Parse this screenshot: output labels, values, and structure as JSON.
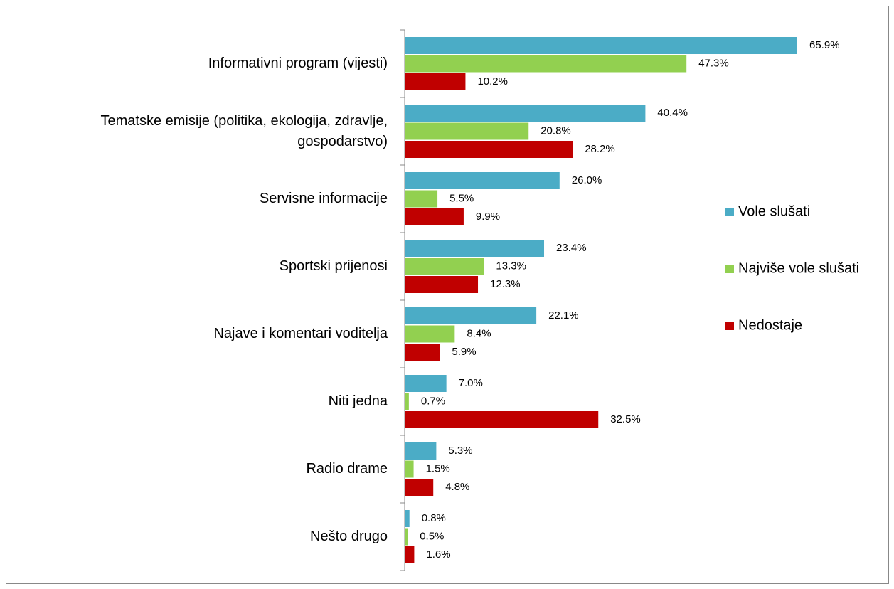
{
  "chart_data": {
    "type": "bar",
    "orientation": "horizontal",
    "categories": [
      "Informativni program (vijesti)",
      "Tematske emisije (politika, ekologija, zdravlje, gospodarstvo)",
      "Servisne informacije",
      "Sportski prijenosi",
      "Najave i komentari voditelja",
      "Niti jedna",
      "Radio drame",
      "Nešto drugo"
    ],
    "series": [
      {
        "name": "Vole slušati",
        "color": "#4bacc6",
        "values": [
          65.9,
          40.4,
          26.0,
          23.4,
          22.1,
          7.0,
          5.3,
          0.8
        ],
        "value_labels": [
          "65.9%",
          "40.4%",
          "26.0%",
          "23.4%",
          "22.1%",
          "7.0%",
          "5.3%",
          "0.8%"
        ]
      },
      {
        "name": "Najviše vole slušati",
        "color": "#92d050",
        "values": [
          47.3,
          20.8,
          5.5,
          13.3,
          8.4,
          0.7,
          1.5,
          0.5
        ],
        "value_labels": [
          "47.3%",
          "20.8%",
          "5.5%",
          "13.3%",
          "8.4%",
          "0.7%",
          "1.5%",
          "0.5%"
        ]
      },
      {
        "name": "Nedostaje",
        "color": "#c00000",
        "values": [
          10.2,
          28.2,
          9.9,
          12.3,
          5.9,
          32.5,
          4.8,
          1.6
        ],
        "value_labels": [
          "10.2%",
          "28.2%",
          "9.9%",
          "12.3%",
          "5.9%",
          "32.5%",
          "4.8%",
          "1.6%"
        ]
      }
    ],
    "legend": "right"
  }
}
